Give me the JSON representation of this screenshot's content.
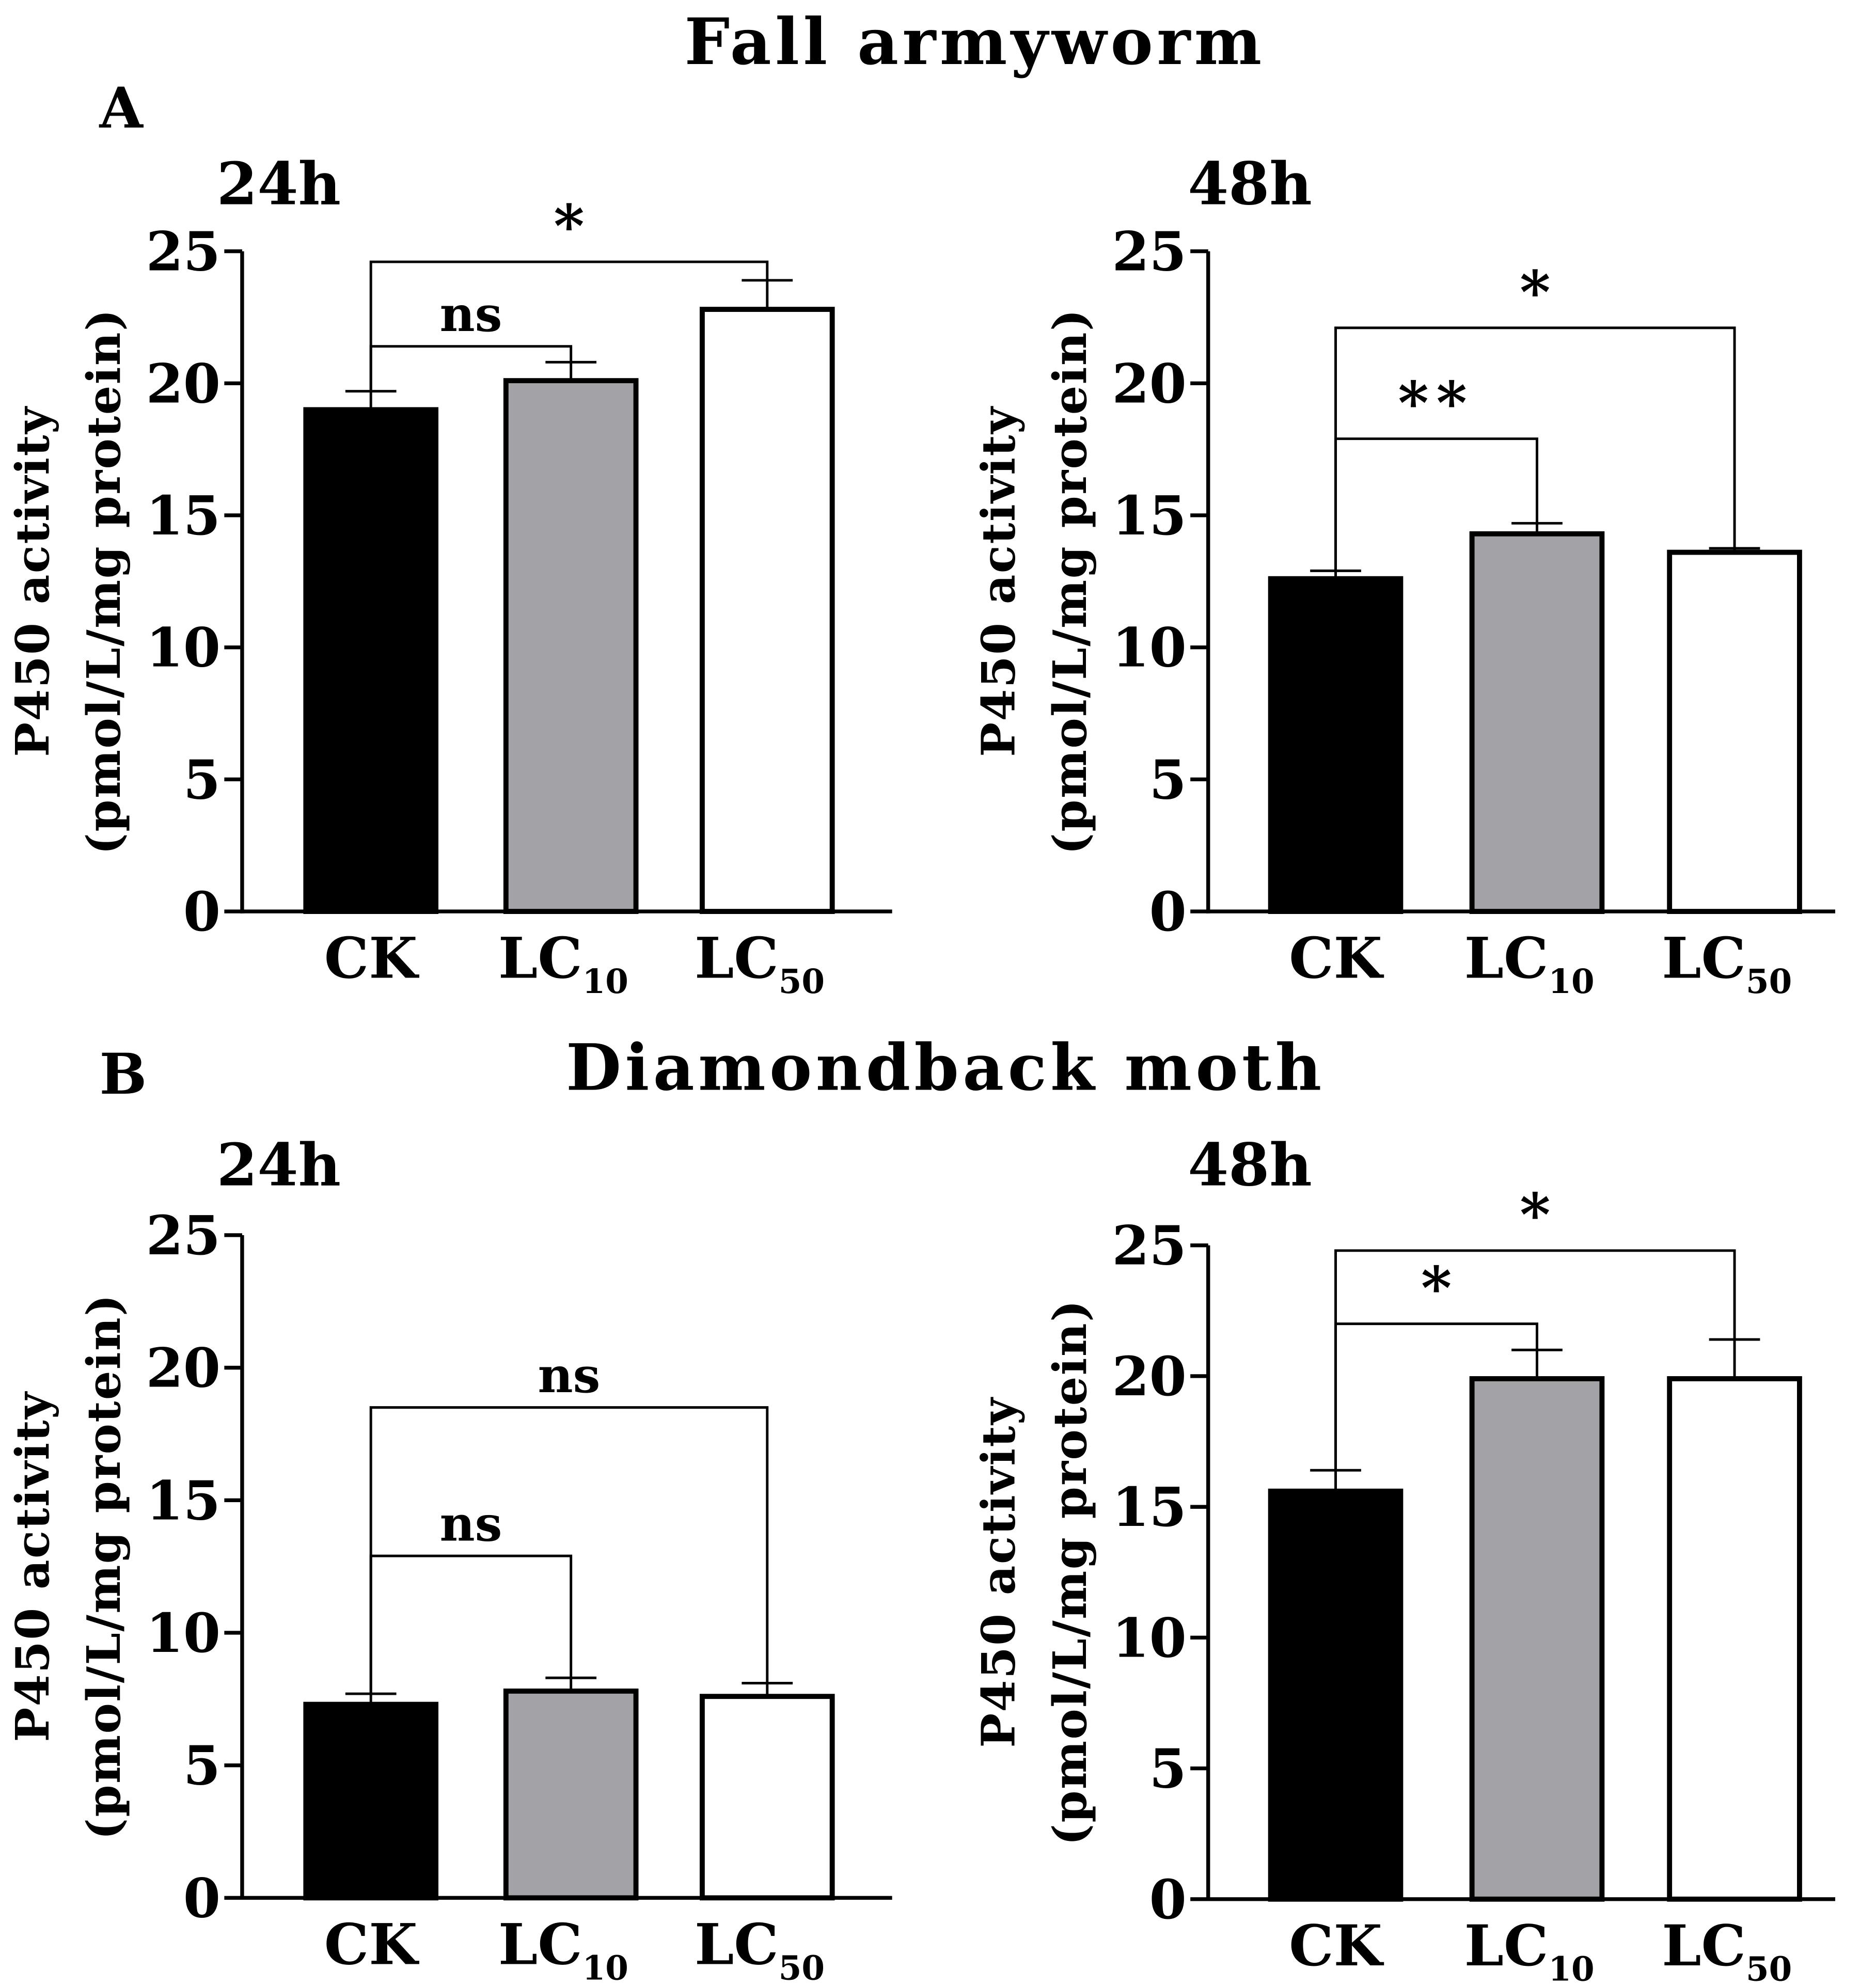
{
  "figure": {
    "section_a_label": "A",
    "section_a_title": "Fall armyworm",
    "section_b_label": "B",
    "section_b_title": "Diamondback moth"
  },
  "colors": {
    "CK": "#000000",
    "LC10": "#a3a2a6",
    "LC50": "#ffffff"
  },
  "chart_data": [
    {
      "type": "bar",
      "title": "24h",
      "section": "A",
      "ylabel_line1": "P450 activity",
      "ylabel_line2": "(pmol/L/mg protein)",
      "ylim": [
        0,
        25
      ],
      "yticks": [
        "0",
        "5",
        "10",
        "15",
        "20",
        "25"
      ],
      "categories": [
        {
          "base": "CK",
          "sub": ""
        },
        {
          "base": "LC",
          "sub": "10"
        },
        {
          "base": "LC",
          "sub": "50"
        }
      ],
      "values": [
        19.0,
        20.1,
        22.8
      ],
      "errors": [
        0.7,
        0.7,
        1.1
      ],
      "brackets": [
        {
          "from": 0,
          "to": 1,
          "y": 21.4,
          "label": "ns"
        },
        {
          "from": 0,
          "to": 2,
          "y": 24.6,
          "label": "*"
        }
      ]
    },
    {
      "type": "bar",
      "title": "48h",
      "section": "A",
      "ylabel_line1": "P450 activity",
      "ylabel_line2": "(pmol/L/mg protein)",
      "ylim": [
        0,
        25
      ],
      "yticks": [
        "0",
        "5",
        "10",
        "15",
        "20",
        "25"
      ],
      "categories": [
        {
          "base": "CK",
          "sub": ""
        },
        {
          "base": "LC",
          "sub": "10"
        },
        {
          "base": "LC",
          "sub": "50"
        }
      ],
      "values": [
        12.6,
        14.3,
        13.6
      ],
      "errors": [
        0.3,
        0.4,
        0.15
      ],
      "brackets": [
        {
          "from": 0,
          "to": 1,
          "y": 17.9,
          "label": "**"
        },
        {
          "from": 0,
          "to": 2,
          "y": 22.1,
          "label": "*"
        }
      ]
    },
    {
      "type": "bar",
      "title": "24h",
      "section": "B",
      "ylabel_line1": "P450 activity",
      "ylabel_line2": "(pmol/L/mg protein)",
      "ylim": [
        0,
        25
      ],
      "yticks": [
        "0",
        "5",
        "10",
        "15",
        "20",
        "25"
      ],
      "categories": [
        {
          "base": "CK",
          "sub": ""
        },
        {
          "base": "LC",
          "sub": "10"
        },
        {
          "base": "LC",
          "sub": "50"
        }
      ],
      "values": [
        7.3,
        7.8,
        7.6
      ],
      "errors": [
        0.4,
        0.5,
        0.5
      ],
      "brackets": [
        {
          "from": 0,
          "to": 1,
          "y": 12.9,
          "label": "ns"
        },
        {
          "from": 0,
          "to": 2,
          "y": 18.5,
          "label": "ns"
        }
      ]
    },
    {
      "type": "bar",
      "title": "48h",
      "section": "B",
      "ylabel_line1": "P450 activity",
      "ylabel_line2": "(pmol/L/mg protein)",
      "ylim": [
        0,
        25
      ],
      "yticks": [
        "0",
        "5",
        "10",
        "15",
        "20",
        "25"
      ],
      "categories": [
        {
          "base": "CK",
          "sub": ""
        },
        {
          "base": "LC",
          "sub": "10"
        },
        {
          "base": "LC",
          "sub": "50"
        }
      ],
      "values": [
        15.6,
        19.9,
        19.9
      ],
      "errors": [
        0.8,
        1.1,
        1.5
      ],
      "brackets": [
        {
          "from": 0,
          "to": 1,
          "y": 22.0,
          "label": "*"
        },
        {
          "from": 0,
          "to": 2,
          "y": 24.8,
          "label": "*"
        }
      ]
    }
  ]
}
